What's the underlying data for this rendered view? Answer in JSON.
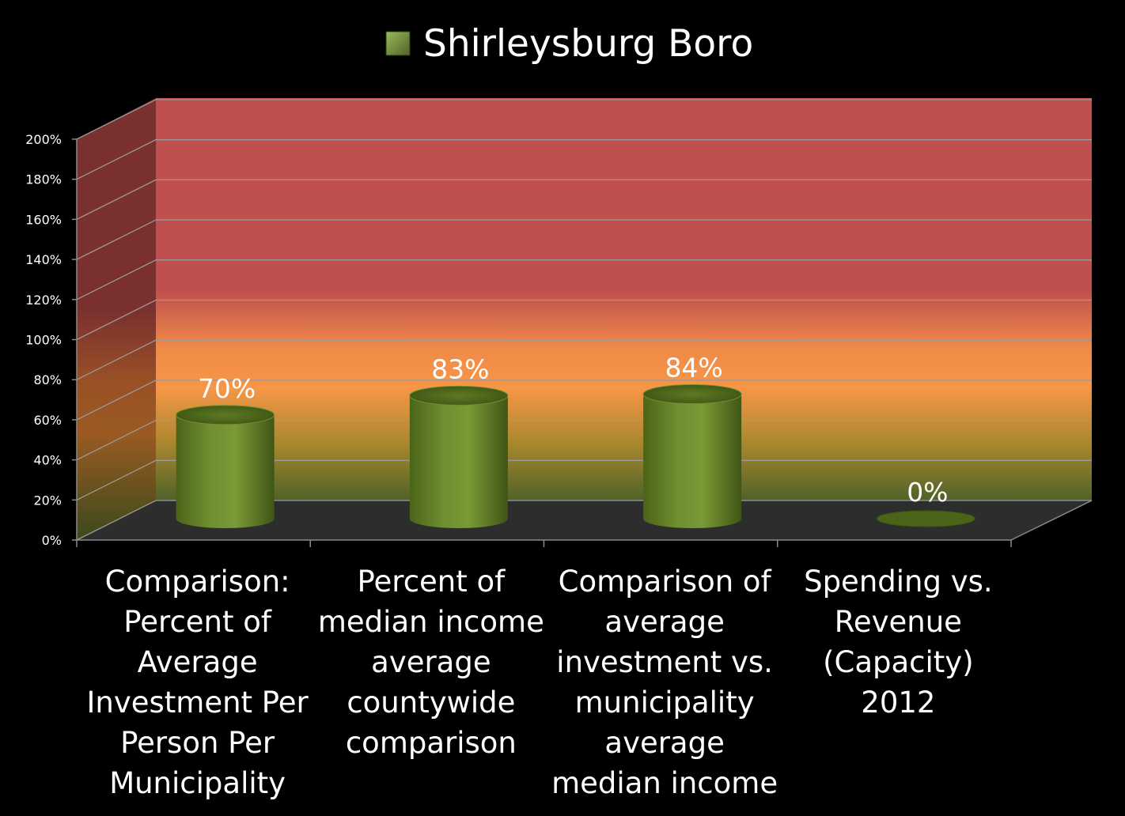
{
  "chart_data": {
    "type": "bar",
    "categories": [
      "Comparison: Percent of Average Investment Per Person Per Municipality",
      "Percent of median income average countywide comparison",
      "Comparison of average investment vs. municipality average median income",
      "Spending vs. Revenue (Capacity) 2012"
    ],
    "series": [
      {
        "name": "Shirleysburg Boro",
        "values": [
          70,
          83,
          84,
          0
        ],
        "color": "#6b8e23"
      }
    ],
    "data_labels": [
      "70%",
      "83%",
      "84%",
      "0%"
    ],
    "yticks": [
      "0%",
      "20%",
      "40%",
      "60%",
      "80%",
      "100%",
      "120%",
      "140%",
      "160%",
      "180%",
      "200%"
    ],
    "ylim": [
      0,
      200
    ],
    "legend_position": "top-center",
    "style": "3d-cylinder",
    "background_bands": [
      "#c0504d",
      "#f79646",
      "#4f6228"
    ]
  }
}
